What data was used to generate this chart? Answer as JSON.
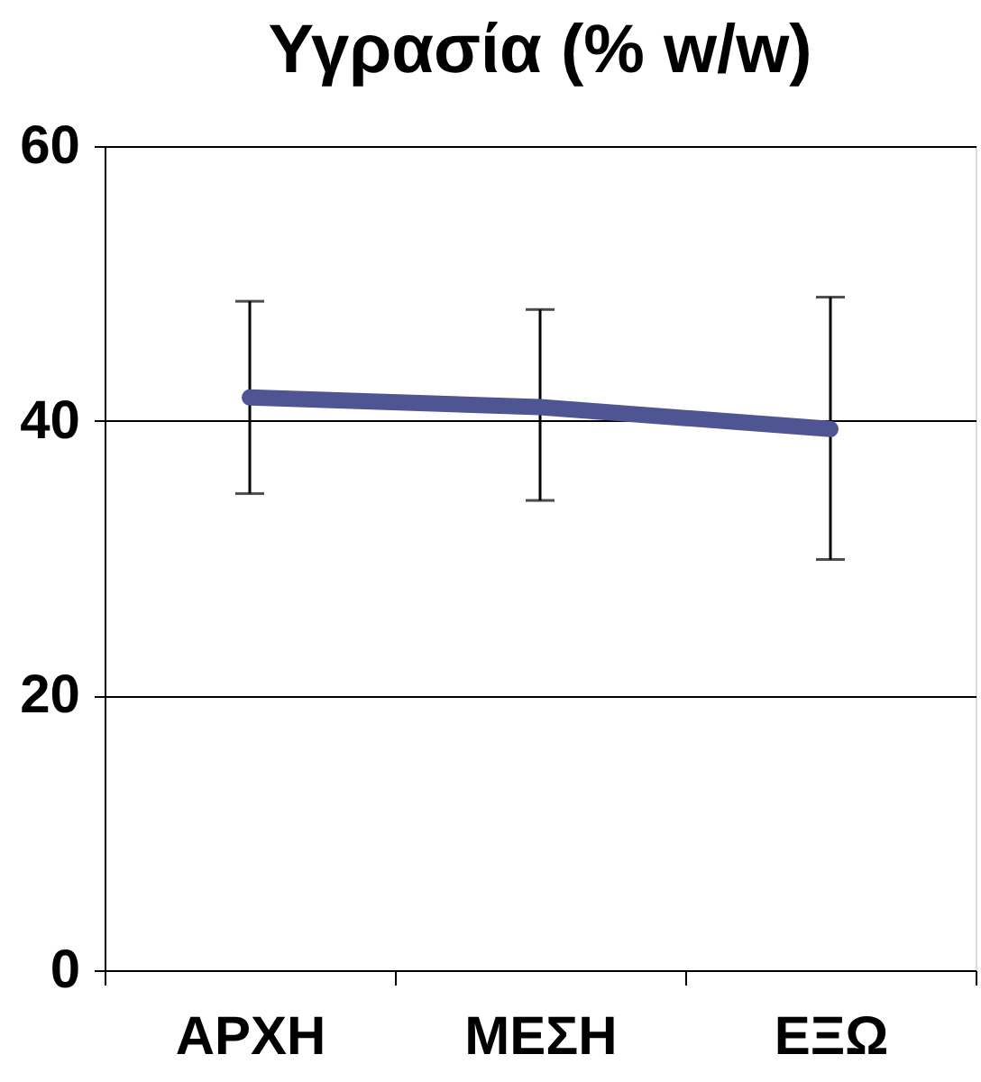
{
  "chart_data": {
    "type": "line",
    "title": "Υγρασία (% w/w)",
    "categories": [
      "ΑΡΧΗ",
      "ΜΕΣΗ",
      "ΕΞΩ"
    ],
    "series": [
      {
        "color": "#4f5592",
        "values": [
          41.7,
          41.0,
          39.4
        ],
        "errors": [
          [
            34.7,
            48.7
          ],
          [
            34.2,
            48.1
          ],
          [
            29.9,
            49.0
          ]
        ]
      }
    ],
    "ylim": [
      0,
      60
    ],
    "yticks": [
      0,
      20,
      40,
      60
    ],
    "grid": "y"
  }
}
